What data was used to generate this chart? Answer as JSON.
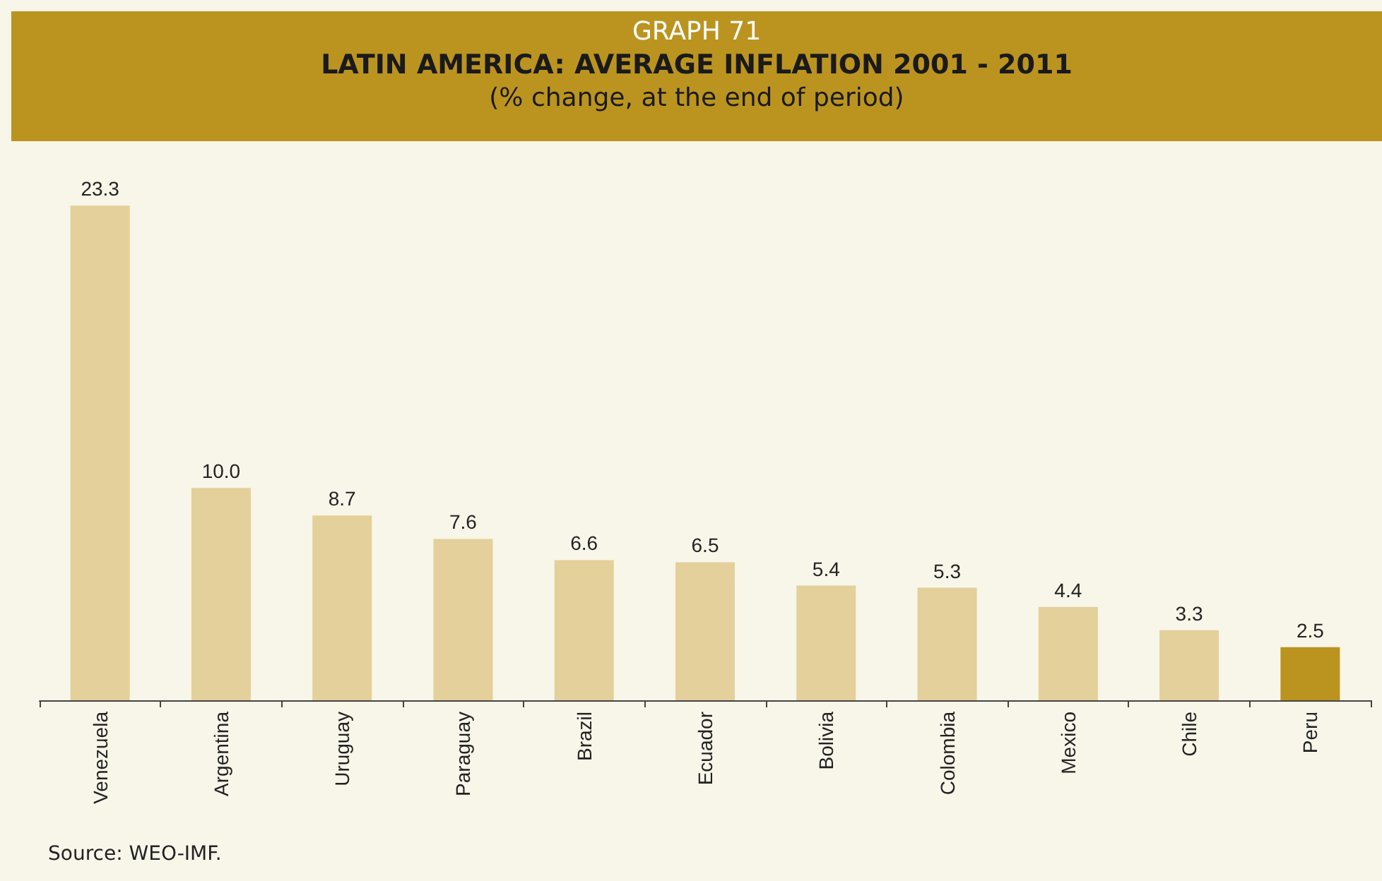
{
  "chart_data": {
    "type": "bar",
    "title": "LATIN AMERICA: AVERAGE INFLATION 2001 - 2011",
    "subtitle": "(% change, at the end of period)",
    "annotations": [
      "GRAPH 71",
      "Source: WEO-IMF."
    ],
    "categories": [
      "Venezuela",
      "Argentina",
      "Uruguay",
      "Paraguay",
      "Brazil",
      "Ecuador",
      "Bolivia",
      "Colombia",
      "Mexico",
      "Chile",
      "Peru"
    ],
    "values": [
      23.3,
      10.0,
      8.7,
      7.6,
      6.6,
      6.5,
      5.4,
      5.3,
      4.4,
      3.3,
      2.5
    ],
    "colors": [
      "#e3d09a",
      "#e3d09a",
      "#e3d09a",
      "#e3d09a",
      "#e3d09a",
      "#e3d09a",
      "#e3d09a",
      "#e3d09a",
      "#e3d09a",
      "#e3d09a",
      "#bb9420"
    ],
    "value_labels": [
      "23.3",
      "10.0",
      "8.7",
      "7.6",
      "6.6",
      "6.5",
      "5.4",
      "5.3",
      "4.4",
      "3.3",
      "2.5"
    ]
  }
}
